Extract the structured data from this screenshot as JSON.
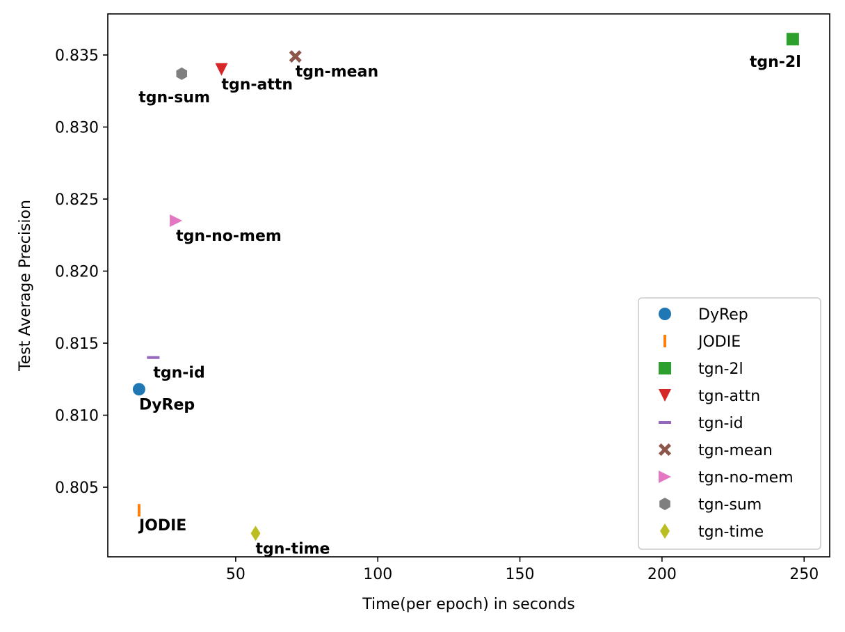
{
  "chart_data": {
    "type": "scatter",
    "title": "",
    "xlabel": "Time(per epoch) in seconds",
    "ylabel": "Test Average Precision",
    "xlim": [
      5,
      259
    ],
    "ylim": [
      0.80017,
      0.83785
    ],
    "xticks": [
      50,
      100,
      150,
      200,
      250
    ],
    "xtick_labels": [
      "50",
      "100",
      "150",
      "200",
      "250"
    ],
    "yticks": [
      0.805,
      0.81,
      0.815,
      0.82,
      0.825,
      0.83,
      0.835
    ],
    "ytick_labels": [
      "0.805",
      "0.810",
      "0.815",
      "0.820",
      "0.825",
      "0.830",
      "0.835"
    ],
    "grid": false,
    "legend_position": "lower-right",
    "series": [
      {
        "name": "DyRep",
        "label": "DyRep",
        "x": 16,
        "y": 0.8118,
        "marker": "circle",
        "color": "#1f77b4"
      },
      {
        "name": "JODIE",
        "label": "JODIE",
        "x": 16,
        "y": 0.8034,
        "marker": "vline",
        "color": "#ff7f0e"
      },
      {
        "name": "tgn-2l",
        "label": "tgn-2l",
        "x": 246,
        "y": 0.8361,
        "marker": "square",
        "color": "#2ca02c"
      },
      {
        "name": "tgn-attn",
        "label": "tgn-attn",
        "x": 45,
        "y": 0.834,
        "marker": "triangle-down",
        "color": "#d62728"
      },
      {
        "name": "tgn-id",
        "label": "tgn-id",
        "x": 21,
        "y": 0.814,
        "marker": "hline",
        "color": "#9467bd"
      },
      {
        "name": "tgn-mean",
        "label": "tgn-mean",
        "x": 71,
        "y": 0.8349,
        "marker": "x-filled",
        "color": "#8c564b"
      },
      {
        "name": "tgn-no-mem",
        "label": "tgn-no-mem",
        "x": 29,
        "y": 0.8235,
        "marker": "triangle-right",
        "color": "#e377c2"
      },
      {
        "name": "tgn-sum",
        "label": "tgn-sum",
        "x": 31,
        "y": 0.8337,
        "marker": "hexagon",
        "color": "#7f7f7f"
      },
      {
        "name": "tgn-time",
        "label": "tgn-time",
        "x": 57,
        "y": 0.8018,
        "marker": "diamond",
        "color": "#bcbd22"
      }
    ]
  }
}
